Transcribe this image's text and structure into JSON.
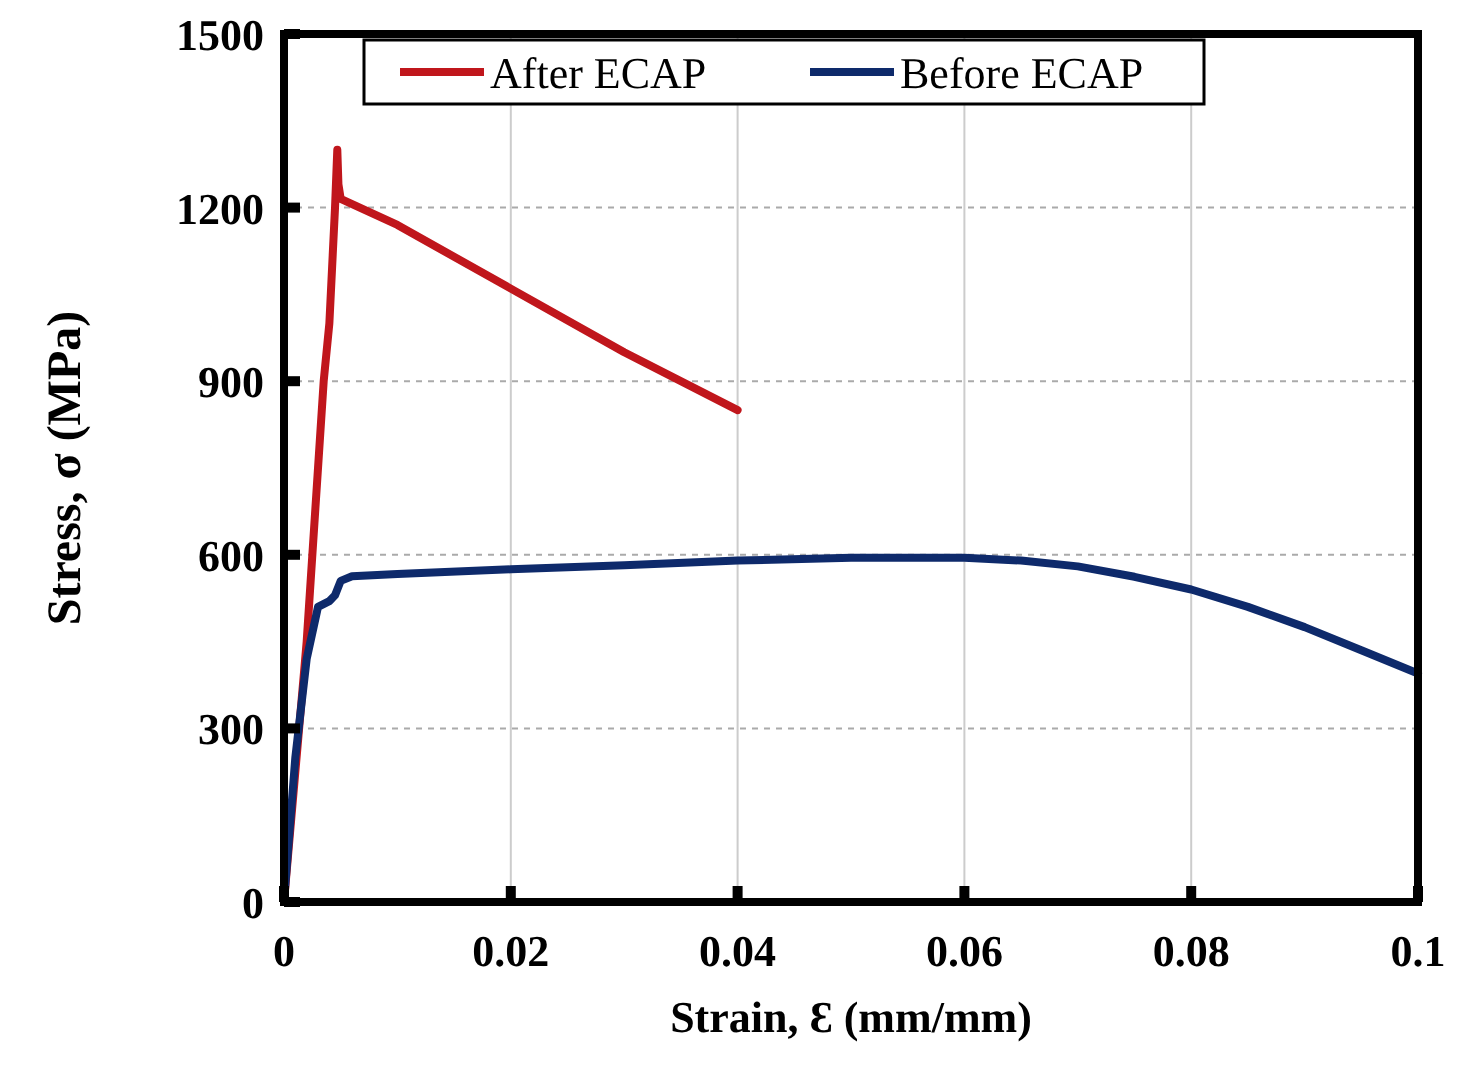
{
  "chart_data": {
    "type": "line",
    "xlabel": "Strain, Ɛ (mm/mm)",
    "ylabel": "Stress, σ (MPa)",
    "xlim": [
      0,
      0.1
    ],
    "xticks": [
      0,
      0.02,
      0.04,
      0.06,
      0.08,
      0.1
    ],
    "ylim": [
      0,
      1500
    ],
    "yticks": [
      0,
      300,
      600,
      900,
      1200,
      1500
    ],
    "grid": true,
    "legend": "top",
    "marker": "none",
    "line_style": "solid",
    "series": [
      {
        "name": "After ECAP",
        "color": "#c0161c",
        "x": [
          0,
          0.002,
          0.003,
          0.0035,
          0.004,
          0.0045,
          0.0047,
          0.0048,
          0.005,
          0.01,
          0.02,
          0.03,
          0.04
        ],
        "values": [
          0,
          450,
          750,
          900,
          1000,
          1200,
          1300,
          1240,
          1215,
          1170,
          1060,
          950,
          850
        ]
      },
      {
        "name": "Before ECAP",
        "color": "#0e2a6b",
        "x": [
          0,
          0.001,
          0.002,
          0.003,
          0.004,
          0.0045,
          0.005,
          0.006,
          0.01,
          0.02,
          0.03,
          0.04,
          0.05,
          0.06,
          0.065,
          0.07,
          0.075,
          0.08,
          0.085,
          0.09,
          0.095,
          0.1
        ],
        "values": [
          0,
          250,
          420,
          510,
          520,
          530,
          555,
          563,
          567,
          575,
          582,
          590,
          595,
          595,
          590,
          580,
          562,
          540,
          510,
          475,
          435,
          395
        ]
      }
    ]
  }
}
